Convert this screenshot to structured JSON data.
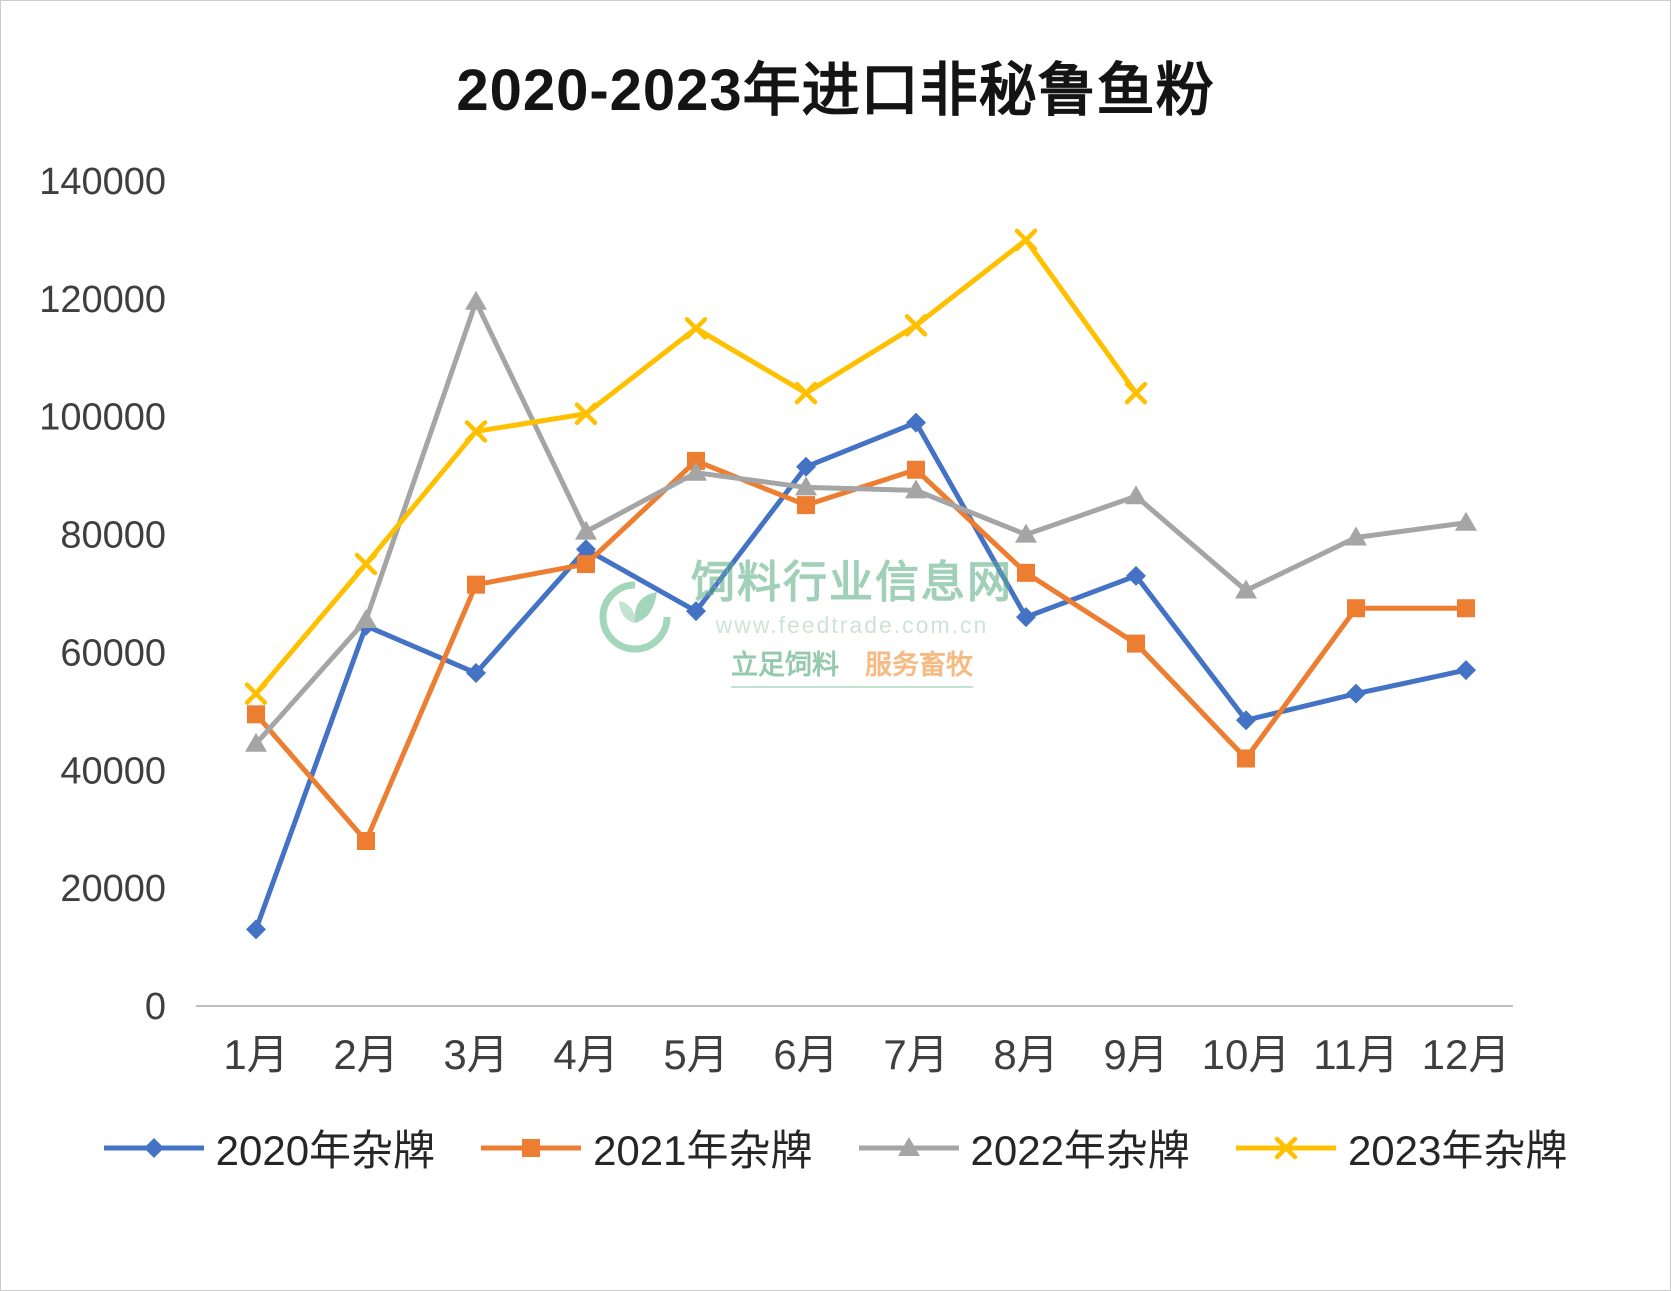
{
  "title": "2020-2023年进口非秘鲁鱼粉",
  "watermark": {
    "name": "饲料行业信息网",
    "url": "www.feedtrade.com.cn",
    "slogan_left": "立足饲料",
    "slogan_right": "服务畜牧"
  },
  "chart_data": {
    "type": "line",
    "title": "2020-2023年进口非秘鲁鱼粉",
    "categories": [
      "1月",
      "2月",
      "3月",
      "4月",
      "5月",
      "6月",
      "7月",
      "8月",
      "9月",
      "10月",
      "11月",
      "12月"
    ],
    "ylim": [
      0,
      140000
    ],
    "ytick_interval": 20000,
    "yticks": [
      0,
      20000,
      40000,
      60000,
      80000,
      100000,
      120000,
      140000
    ],
    "grid": false,
    "legend_position": "bottom",
    "axis_color": "#bfbfbf",
    "label_color": "#3f3f3f",
    "series": [
      {
        "name": "2020年杂牌",
        "color": "#4472C4",
        "marker": "diamond",
        "values": [
          13000,
          64500,
          56500,
          77500,
          67000,
          91500,
          99000,
          66000,
          73000,
          48500,
          53000,
          57000
        ]
      },
      {
        "name": "2021年杂牌",
        "color": "#ED7D31",
        "marker": "square",
        "values": [
          49500,
          28000,
          71500,
          75000,
          92500,
          85000,
          91000,
          73500,
          61500,
          42000,
          67500,
          67500
        ]
      },
      {
        "name": "2022年杂牌",
        "color": "#A5A5A5",
        "marker": "triangle",
        "values": [
          44500,
          65500,
          119500,
          80500,
          90500,
          88000,
          87500,
          80000,
          86500,
          70500,
          79500,
          82000
        ]
      },
      {
        "name": "2023年杂牌",
        "color": "#FFC000",
        "marker": "x",
        "values": [
          53000,
          75000,
          97500,
          100500,
          115000,
          104000,
          115500,
          130000,
          104000,
          null,
          null,
          null
        ]
      }
    ]
  }
}
